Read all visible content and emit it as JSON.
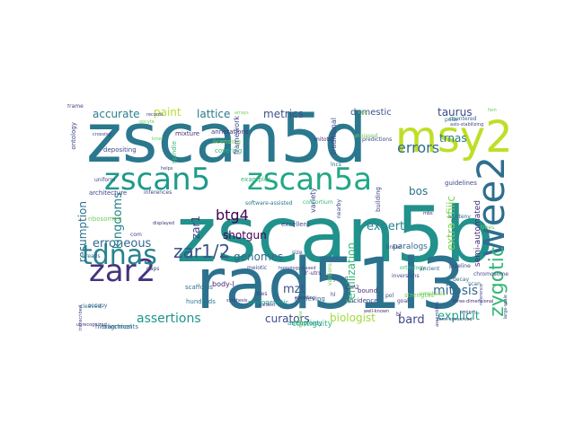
{
  "wordcloud": {
    "words": [
      {
        "text": "zscan5b",
        "color": "#21918c",
        "vertical": false
      },
      {
        "text": "rad51l3",
        "color": "#2c728e",
        "vertical": false
      },
      {
        "text": "zscan5d",
        "color": "#2a788e",
        "vertical": false
      },
      {
        "text": "msy2",
        "color": "#bddf26",
        "vertical": false
      },
      {
        "text": "zscan5",
        "color": "#1f9a8a",
        "vertical": false
      },
      {
        "text": "zscan5a",
        "color": "#22a884",
        "vertical": false
      },
      {
        "text": "zar2",
        "color": "#46337e",
        "vertical": false
      },
      {
        "text": "wee2",
        "color": "#2e6e8e",
        "vertical": true
      },
      {
        "text": "tdnas",
        "color": "#26828e",
        "vertical": false
      },
      {
        "text": "zygotic",
        "color": "#35b779",
        "vertical": true
      },
      {
        "text": "errors",
        "color": "#2f6c8e",
        "vertical": false
      },
      {
        "text": "zar1/2",
        "color": "#3b528b",
        "vertical": false
      },
      {
        "text": "assertions",
        "color": "#1f958b",
        "vertical": false
      },
      {
        "text": "mitosis",
        "color": "#31688e",
        "vertical": false
      },
      {
        "text": "btg4",
        "color": "#440154",
        "vertical": false
      },
      {
        "text": "curators",
        "color": "#3e4989",
        "vertical": false
      },
      {
        "text": "bard",
        "color": "#3f4889",
        "vertical": false
      },
      {
        "text": "explicit",
        "color": "#1fa187",
        "vertical": false
      },
      {
        "text": "expert",
        "color": "#26828e",
        "vertical": false
      },
      {
        "text": "accurate",
        "color": "#277f8e",
        "vertical": false
      },
      {
        "text": "lattice",
        "color": "#2a788e",
        "vertical": false
      },
      {
        "text": "metrics",
        "color": "#3b528b",
        "vertical": false
      },
      {
        "text": "paint",
        "color": "#b5de2b",
        "vertical": false
      },
      {
        "text": "taurus",
        "color": "#3e4989",
        "vertical": false
      },
      {
        "text": "trnas",
        "color": "#2a788e",
        "vertical": false
      },
      {
        "text": "bos",
        "color": "#2c728e",
        "vertical": false
      },
      {
        "text": "genomes",
        "color": "#2f6c8e",
        "vertical": false
      },
      {
        "text": "erroneous",
        "color": "#31688e",
        "vertical": false
      },
      {
        "text": "kingdoms",
        "color": "#25848e",
        "vertical": true
      },
      {
        "text": "resumption",
        "color": "#2c728e",
        "vertical": true
      },
      {
        "text": "extra-tfiiic",
        "color": "#7ad151",
        "vertical": true
      },
      {
        "text": "mzt",
        "color": "#3b528b",
        "vertical": false
      },
      {
        "text": "biologist",
        "color": "#a0da39",
        "vertical": false
      },
      {
        "text": "fertilization",
        "color": "#35b779",
        "vertical": true
      },
      {
        "text": "shotgun",
        "color": "#440154",
        "vertical": false
      },
      {
        "text": "zar1",
        "color": "#414487",
        "vertical": true
      },
      {
        "text": "domestic",
        "color": "#3b528b",
        "vertical": false
      },
      {
        "text": "semi-automated",
        "color": "#472d7b",
        "vertical": true
      },
      {
        "text": "paralogs",
        "color": "#31688e",
        "vertical": false
      },
      {
        "text": "contiguity",
        "color": "#2fb47c",
        "vertical": false
      },
      {
        "text": "body-l",
        "color": "#482173",
        "vertical": false
      },
      {
        "text": "hundreds",
        "color": "#2a788e",
        "vertical": false
      },
      {
        "text": "mixture",
        "color": "#472d7b",
        "vertical": false
      },
      {
        "text": "annotations",
        "color": "#46337e",
        "vertical": false
      },
      {
        "text": "depositing",
        "color": "#3e4989",
        "vertical": false
      },
      {
        "text": "spindle",
        "color": "#35b779",
        "vertical": true
      },
      {
        "text": "licensing",
        "color": "#6ece58",
        "vertical": false
      },
      {
        "text": "covering",
        "color": "#2fb47c",
        "vertical": false
      },
      {
        "text": "inferences",
        "color": "#3e4989",
        "vertical": false
      },
      {
        "text": "architecture",
        "color": "#414487",
        "vertical": false
      },
      {
        "text": "software-assisted",
        "color": "#2a788e",
        "vertical": false
      },
      {
        "text": "consortium",
        "color": "#35b779",
        "vertical": false
      },
      {
        "text": "guidelines",
        "color": "#3e4989",
        "vertical": false
      },
      {
        "text": "synteny",
        "color": "#31688e",
        "vertical": false
      },
      {
        "text": "pipeline",
        "color": "#3e4989",
        "vertical": false
      },
      {
        "text": "strengths",
        "color": "#6ece58",
        "vertical": false
      },
      {
        "text": "orthology",
        "color": "#35b779",
        "vertical": false
      },
      {
        "text": "inversions",
        "color": "#3e4989",
        "vertical": false
      },
      {
        "text": "phylogenetic",
        "color": "#1f958b",
        "vertical": false
      },
      {
        "text": "retrieving",
        "color": "#31688e",
        "vertical": false
      },
      {
        "text": "aneuploidy",
        "color": "#1f958b",
        "vertical": false
      },
      {
        "text": "alignments",
        "color": "#2c728e",
        "vertical": false
      },
      {
        "text": "hierarchical",
        "color": "#31688e",
        "vertical": false
      },
      {
        "text": "scaffolds",
        "color": "#2c728e",
        "vertical": false
      },
      {
        "text": "excellent",
        "color": "#3e4989",
        "vertical": false
      },
      {
        "text": "linker",
        "color": "#414487",
        "vertical": false
      },
      {
        "text": "ancient",
        "color": "#31688e",
        "vertical": false
      },
      {
        "text": "emphasis",
        "color": "#6ece58",
        "vertical": false
      },
      {
        "text": "incidence",
        "color": "#414487",
        "vertical": false
      },
      {
        "text": "decay",
        "color": "#31688e",
        "vertical": false
      },
      {
        "text": "predictions",
        "color": "#3e4989",
        "vertical": false
      },
      {
        "text": "ontology",
        "color": "#3e4989",
        "vertical": true
      },
      {
        "text": "examples",
        "color": "#35b779",
        "vertical": false
      },
      {
        "text": "mitotic",
        "color": "#472d7b",
        "vertical": false
      },
      {
        "text": "polar",
        "color": "#2a788e",
        "vertical": false
      },
      {
        "text": "countered",
        "color": "#31688e",
        "vertical": false
      },
      {
        "text": "chromosome",
        "color": "#414487",
        "vertical": false
      },
      {
        "text": "homology-based",
        "color": "#414487",
        "vertical": false
      },
      {
        "text": "bound",
        "color": "#472d7b",
        "vertical": false
      },
      {
        "text": "variety",
        "color": "#3e4989",
        "vertical": true
      },
      {
        "text": "building",
        "color": "#414487",
        "vertical": true
      },
      {
        "text": "meiotic",
        "color": "#3e4989",
        "vertical": false
      },
      {
        "text": "uniform",
        "color": "#3e4989",
        "vertical": false
      },
      {
        "text": "traditional",
        "color": "#3e4989",
        "vertical": true
      },
      {
        "text": "framework",
        "color": "#3e4989",
        "vertical": true
      },
      {
        "text": "ribosomes",
        "color": "#6ece58",
        "vertical": false
      },
      {
        "text": "com",
        "color": "#414487",
        "vertical": false
      },
      {
        "text": "gaps",
        "color": "#414487",
        "vertical": false
      },
      {
        "text": "reads",
        "color": "#31688e",
        "vertical": false
      },
      {
        "text": "trees",
        "color": "#6ece58",
        "vertical": false
      },
      {
        "text": "scan",
        "color": "#31688e",
        "vertical": false
      },
      {
        "text": "occupy",
        "color": "#31688e",
        "vertical": false
      },
      {
        "text": "hl",
        "color": "#3e4989",
        "vertical": false
      },
      {
        "text": "c3h2",
        "color": "#472d7b",
        "vertical": false
      },
      {
        "text": "pol",
        "color": "#414487",
        "vertical": false
      },
      {
        "text": "bl",
        "color": "#472d7b",
        "vertical": false
      },
      {
        "text": "goal",
        "color": "#414487",
        "vertical": false
      },
      {
        "text": "green",
        "color": "#31688e",
        "vertical": false
      },
      {
        "text": "roles",
        "color": "#414487",
        "vertical": false
      },
      {
        "text": "cleaved",
        "color": "#31688e",
        "vertical": false
      },
      {
        "text": "unbiased",
        "color": "#6ece58",
        "vertical": false
      },
      {
        "text": "line",
        "color": "#6ece58",
        "vertical": false
      },
      {
        "text": "size",
        "color": "#3e4989",
        "vertical": false
      },
      {
        "text": "lncs",
        "color": "#31688e",
        "vertical": false
      },
      {
        "text": "nearby",
        "color": "#3e4989",
        "vertical": true
      },
      {
        "text": "versions",
        "color": "#6ece58",
        "vertical": true
      },
      {
        "text": "3'-utrs",
        "color": "#472d7b",
        "vertical": false
      },
      {
        "text": "records",
        "color": "#414487",
        "vertical": false
      },
      {
        "text": "oocyte",
        "color": "#6ece58",
        "vertical": false
      },
      {
        "text": "kmer",
        "color": "#6ece58",
        "vertical": false
      },
      {
        "text": "mbs",
        "color": "#472d7b",
        "vertical": false
      },
      {
        "text": "fam",
        "color": "#6ece58",
        "vertical": false
      },
      {
        "text": "axis-stabilizing",
        "color": "#414487",
        "vertical": false
      },
      {
        "text": "crossing",
        "color": "#414487",
        "vertical": false
      },
      {
        "text": "arrays",
        "color": "#6ece58",
        "vertical": false
      },
      {
        "text": "helps",
        "color": "#414487",
        "vertical": false
      },
      {
        "text": "displayed",
        "color": "#472d7b",
        "vertical": false
      },
      {
        "text": "synthesis",
        "color": "#472d7b",
        "vertical": false
      },
      {
        "text": "earliest",
        "color": "#414487",
        "vertical": false
      },
      {
        "text": "encoding",
        "color": "#472d7b",
        "vertical": false
      },
      {
        "text": "unrecognized",
        "color": "#472d7b",
        "vertical": false
      },
      {
        "text": "transcribed",
        "color": "#414487",
        "vertical": true
      },
      {
        "text": "self-like",
        "color": "#6ece58",
        "vertical": true
      },
      {
        "text": "well-known",
        "color": "#472d7b",
        "vertical": false
      },
      {
        "text": "semi-conserved",
        "color": "#414487",
        "vertical": false
      },
      {
        "text": "three-dimensional",
        "color": "#472d7b",
        "vertical": false
      },
      {
        "text": "project",
        "color": "#414487",
        "vertical": false
      },
      {
        "text": "reference",
        "color": "#414487",
        "vertical": true
      },
      {
        "text": "large-scale",
        "color": "#414487",
        "vertical": true
      },
      {
        "text": "assemblies",
        "color": "#414487",
        "vertical": true
      },
      {
        "text": "frame",
        "color": "#414487",
        "vertical": false
      }
    ]
  }
}
